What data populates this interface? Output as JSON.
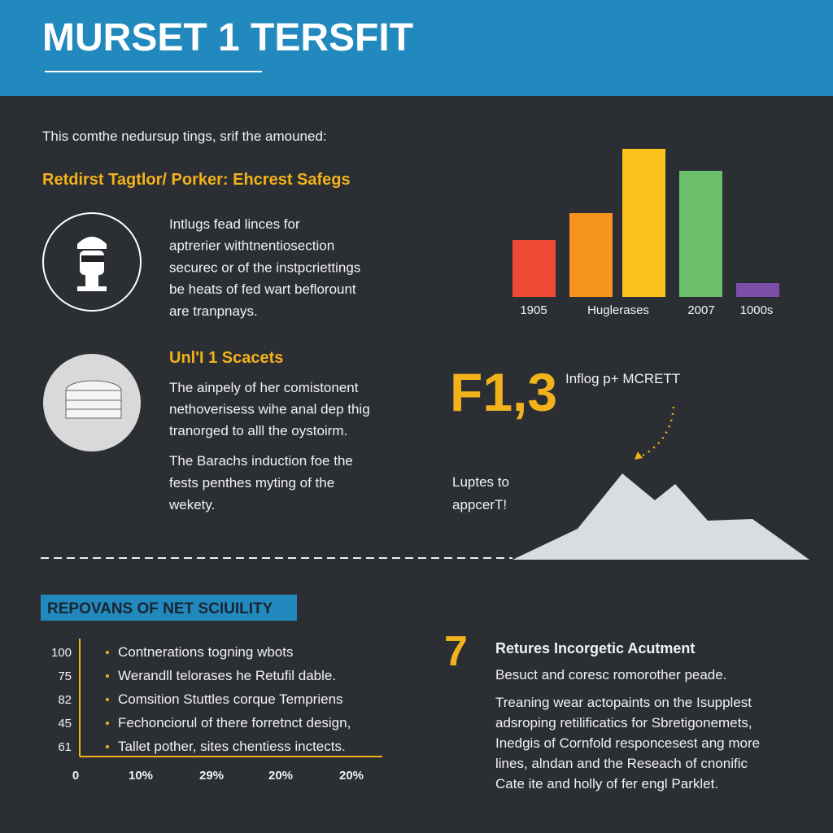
{
  "header": {
    "title": "MURSET 1 TERSFIT"
  },
  "intro": "This comthe nedursup tings, srif the amouned:",
  "section1": {
    "heading": "Retdirst Tagtlor/ Porker: Ehcrest Safegs",
    "lines": [
      "Intlugs fead linces for",
      "aptrerier withtnentiosection",
      "securec or of the instpcriettings",
      "be heats of fed wart beflorount",
      "are tranpnays."
    ]
  },
  "section2": {
    "heading": "Unl'I 1 Scacets",
    "lines": [
      "The ainpely of her comistonent",
      "nethoverisess wihe anal dep thig",
      "tranorged to alll the oystoirm."
    ],
    "lines2": [
      "The Barachs induction foe the",
      "fests penthes myting of the",
      "wekety."
    ]
  },
  "bar_chart": {
    "labels": [
      "1905",
      "Huglerases",
      null,
      "2007",
      "1000s"
    ],
    "values": [
      70,
      103,
      182,
      155,
      17
    ],
    "colors": [
      "#ef4a33",
      "#f7941d",
      "#fcc21b",
      "#6cbf6a",
      "#7b4fa8"
    ]
  },
  "stat": {
    "value": "F1,3",
    "caption": "Inflog p+ MCRETT",
    "note": [
      "Luptes to",
      "appcerT!"
    ]
  },
  "section3": {
    "label": "REPOVANS OF NET SCIUILITY",
    "y_labels": [
      "100",
      "75",
      "82",
      "45",
      "61"
    ],
    "items": [
      "Contnerations togning wbots",
      "Werandll telorases he Retufil dable.",
      "Comsition Stuttles corque Tempriens",
      "Fechonciorul of there forretnct design,",
      "Tallet pother, sites chentiess inctects."
    ],
    "x_labels": [
      "0",
      "10%",
      "29%",
      "20%",
      "20%"
    ]
  },
  "section4": {
    "number": "7",
    "heading": "Retures Incorgetic Acutment",
    "subtitle": "Besuct and coresc romorother peade.",
    "lines": [
      "Treaning wear actopaints on the Isupplest",
      "adsroping retilificatics for Sbretigonemets,",
      "Inedgis of Cornfold responcesest ang more",
      "lines, alndan and the Reseach of cnonific",
      "Cate ite and holly of fer engl Parklet."
    ]
  }
}
